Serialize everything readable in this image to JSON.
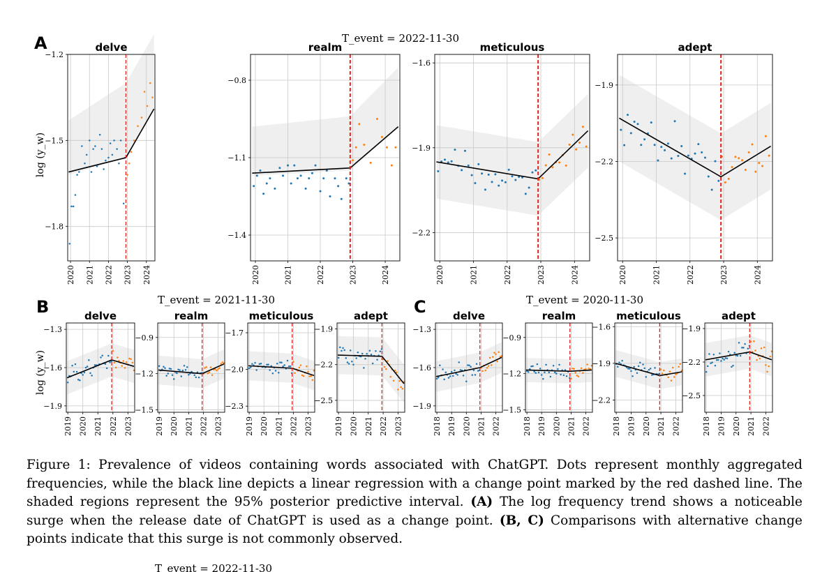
{
  "figure": {
    "caption_label": "Figure 1:",
    "caption_text": "Prevalence of videos containing words associated with ChatGPT. Dots represent monthly aggregated frequencies, while the black line depicts a linear regression with a change point marked by the red dashed line. The shaded regions represent the 95% posterior predictive interval.",
    "caption_a_label": "(A)",
    "caption_a_text": "The log frequency trend shows a noticeable surge when the release date of ChatGPT is used as a change point.",
    "caption_bc_label": "(B, C)",
    "caption_bc_text": "Comparisons with alternative change points indicate that this surge is not commonly observed.",
    "cutoff_text": "T_event = 2022-11-30"
  },
  "colors": {
    "pre_points": "#1f77b4",
    "post_points": "#ff7f0e",
    "change_line": "#e8211d",
    "regression": "#000000",
    "band": "#efefef",
    "grid": "#c8c8c8"
  },
  "ylabel": "log (y_w)",
  "chart_data": [
    {
      "panel": "A",
      "tevent_label": "T_event = 2022-11-30",
      "type": "scatter",
      "change_point": 2022.92,
      "subplots": [
        {
          "title": "delve",
          "xlim": [
            2019.85,
            2024.45
          ],
          "ylim": [
            -1.92,
            -1.2
          ],
          "xticks": [
            "2020",
            "2021",
            "2022",
            "2023",
            "2024"
          ],
          "yticks": [
            -1.2,
            -1.5,
            -1.8
          ],
          "regression": [
            [
              2019.9,
              -1.61
            ],
            [
              2022.92,
              -1.56
            ],
            [
              2024.4,
              -1.39
            ]
          ],
          "band": [
            [
              2019.9,
              -1.62,
              -1.43
            ],
            [
              2022.92,
              -1.56,
              -1.3
            ],
            [
              2024.4,
              -1.39,
              -1.13
            ]
          ],
          "pre": [
            [
              2019.95,
              -1.86
            ],
            [
              2020.05,
              -1.73
            ],
            [
              2020.15,
              -1.73
            ],
            [
              2020.25,
              -1.69
            ],
            [
              2020.35,
              -1.62
            ],
            [
              2020.45,
              -1.61
            ],
            [
              2020.6,
              -1.52
            ],
            [
              2020.75,
              -1.58
            ],
            [
              2020.85,
              -1.55
            ],
            [
              2021.0,
              -1.5
            ],
            [
              2021.1,
              -1.61
            ],
            [
              2021.2,
              -1.53
            ],
            [
              2021.3,
              -1.52
            ],
            [
              2021.4,
              -1.59
            ],
            [
              2021.55,
              -1.48
            ],
            [
              2021.65,
              -1.53
            ],
            [
              2021.75,
              -1.6
            ],
            [
              2021.85,
              -1.57
            ],
            [
              2022.0,
              -1.56
            ],
            [
              2022.1,
              -1.51
            ],
            [
              2022.2,
              -1.55
            ],
            [
              2022.3,
              -1.5
            ],
            [
              2022.45,
              -1.53
            ],
            [
              2022.55,
              -1.58
            ],
            [
              2022.65,
              -1.5
            ],
            [
              2022.8,
              -1.72
            ],
            [
              2022.88,
              -1.56
            ]
          ],
          "post": [
            [
              2023.0,
              -1.62
            ],
            [
              2023.1,
              -1.58
            ],
            [
              2023.2,
              -1.54
            ],
            [
              2023.35,
              -1.5
            ],
            [
              2023.55,
              -1.45
            ],
            [
              2023.75,
              -1.42
            ],
            [
              2023.9,
              -1.33
            ],
            [
              2024.05,
              -1.38
            ],
            [
              2024.2,
              -1.3
            ],
            [
              2024.32,
              -1.35
            ]
          ]
        },
        {
          "title": "realm",
          "xlim": [
            2019.85,
            2024.45
          ],
          "ylim": [
            -1.5,
            -0.7
          ],
          "xticks": [
            "2020",
            "2021",
            "2022",
            "2023",
            "2024"
          ],
          "yticks": [
            -0.8,
            -1.1,
            -1.4
          ],
          "regression": [
            [
              2019.9,
              -1.16
            ],
            [
              2022.92,
              -1.14
            ],
            [
              2024.4,
              -0.98
            ]
          ],
          "band": [
            [
              2019.9,
              -1.17,
              -0.98
            ],
            [
              2022.92,
              -1.15,
              -0.94
            ],
            [
              2024.4,
              -0.98,
              -0.75
            ]
          ],
          "pre": [
            [
              2019.95,
              -1.21
            ],
            [
              2020.05,
              -1.17
            ],
            [
              2020.15,
              -1.15
            ],
            [
              2020.25,
              -1.24
            ],
            [
              2020.35,
              -1.2
            ],
            [
              2020.45,
              -1.18
            ],
            [
              2020.6,
              -1.22
            ],
            [
              2020.75,
              -1.14
            ],
            [
              2020.85,
              -1.17
            ],
            [
              2021.0,
              -1.13
            ],
            [
              2021.1,
              -1.2
            ],
            [
              2021.2,
              -1.13
            ],
            [
              2021.3,
              -1.18
            ],
            [
              2021.4,
              -1.17
            ],
            [
              2021.55,
              -1.22
            ],
            [
              2021.65,
              -1.18
            ],
            [
              2021.75,
              -1.16
            ],
            [
              2021.85,
              -1.13
            ],
            [
              2022.0,
              -1.23
            ],
            [
              2022.1,
              -1.18
            ],
            [
              2022.2,
              -1.15
            ],
            [
              2022.3,
              -1.25
            ],
            [
              2022.45,
              -1.18
            ],
            [
              2022.55,
              -1.21
            ],
            [
              2022.65,
              -1.26
            ],
            [
              2022.8,
              -1.18
            ],
            [
              2022.88,
              -1.2
            ]
          ],
          "post": [
            [
              2023.0,
              -1.11
            ],
            [
              2023.1,
              -1.06
            ],
            [
              2023.2,
              -0.97
            ],
            [
              2023.35,
              -1.05
            ],
            [
              2023.55,
              -1.12
            ],
            [
              2023.75,
              -0.95
            ],
            [
              2023.9,
              -1.02
            ],
            [
              2024.05,
              -1.06
            ],
            [
              2024.2,
              -1.13
            ],
            [
              2024.32,
              -1.06
            ]
          ]
        },
        {
          "title": "meticulous",
          "xlim": [
            2019.85,
            2024.45
          ],
          "ylim": [
            -2.3,
            -1.57
          ],
          "xticks": [
            "2020",
            "2021",
            "2022",
            "2023",
            "2024"
          ],
          "yticks": [
            -1.6,
            -1.9,
            -2.2
          ]
        },
        {
          "title": "adept",
          "xlim": [
            2019.85,
            2024.45
          ],
          "ylim": [
            -2.59,
            -1.78
          ],
          "xticks": [
            "2020",
            "2021",
            "2022",
            "2023",
            "2024"
          ],
          "yticks": [
            -1.9,
            -2.2,
            -2.5
          ]
        }
      ]
    },
    {
      "panel": "B",
      "tevent_label": "T_event = 2021-11-30",
      "type": "scatter",
      "change_point": 2021.92,
      "subplots": [
        {
          "title": "delve",
          "xlim": [
            2018.9,
            2023.45
          ],
          "ylim": [
            -1.95,
            -1.25
          ],
          "xticks": [
            "2019",
            "2020",
            "2021",
            "2022",
            "2023"
          ],
          "yticks": [
            -1.3,
            -1.6,
            -1.9
          ]
        },
        {
          "title": "realm",
          "xlim": [
            2018.9,
            2023.45
          ],
          "ylim": [
            -1.52,
            -0.78
          ],
          "xticks": [
            "2019",
            "2020",
            "2021",
            "2022",
            "2023"
          ],
          "yticks": [
            -0.9,
            -1.2,
            -1.5
          ]
        },
        {
          "title": "meticulous",
          "xlim": [
            2018.9,
            2023.45
          ],
          "ylim": [
            -2.35,
            -1.62
          ],
          "xticks": [
            "2019",
            "2020",
            "2021",
            "2022",
            "2023"
          ],
          "yticks": [
            -1.7,
            -2.0,
            -2.3
          ]
        },
        {
          "title": "adept",
          "xlim": [
            2018.9,
            2023.45
          ],
          "ylim": [
            -2.6,
            -1.85
          ],
          "xticks": [
            "2019",
            "2020",
            "2021",
            "2022",
            "2023"
          ],
          "yticks": [
            -1.9,
            -2.2,
            -2.5
          ]
        }
      ]
    },
    {
      "panel": "C",
      "tevent_label": "T_event = 2020-11-30",
      "type": "scatter",
      "change_point": 2020.92,
      "subplots": [
        {
          "title": "delve",
          "xlim": [
            2017.9,
            2022.45
          ],
          "ylim": [
            -1.95,
            -1.25
          ],
          "xticks": [
            "2018",
            "2019",
            "2020",
            "2021",
            "2022"
          ],
          "yticks": [
            -1.3,
            -1.6,
            -1.9
          ]
        },
        {
          "title": "realm",
          "xlim": [
            2017.9,
            2022.45
          ],
          "ylim": [
            -1.52,
            -0.78
          ],
          "xticks": [
            "2018",
            "2019",
            "2020",
            "2021",
            "2022"
          ],
          "yticks": [
            -0.9,
            -1.2,
            -1.5
          ]
        },
        {
          "title": "meticulous",
          "xlim": [
            2017.9,
            2022.45
          ],
          "ylim": [
            -2.3,
            -1.57
          ],
          "xticks": [
            "2018",
            "2019",
            "2020",
            "2021",
            "2022"
          ],
          "yticks": [
            -1.6,
            -1.9,
            -2.2
          ]
        },
        {
          "title": "adept",
          "xlim": [
            2017.9,
            2022.45
          ],
          "ylim": [
            -2.65,
            -1.85
          ],
          "xticks": [
            "2018",
            "2019",
            "2020",
            "2021",
            "2022"
          ],
          "yticks": [
            -1.9,
            -2.2,
            -2.5
          ]
        }
      ]
    }
  ]
}
